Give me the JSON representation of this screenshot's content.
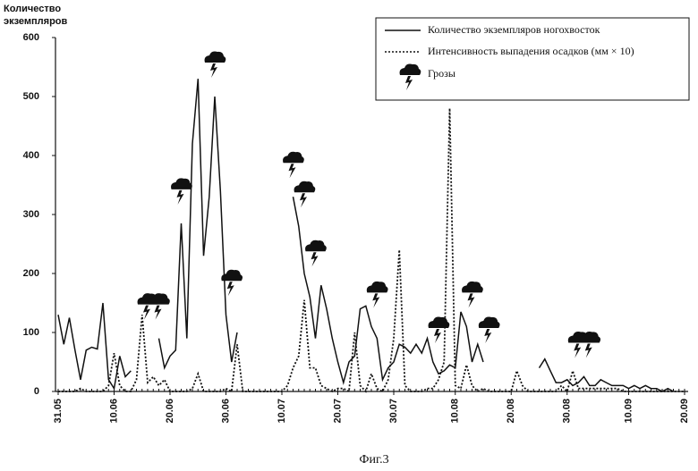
{
  "chart_data": {
    "type": "line",
    "ylabel": [
      "Количество",
      "экземпляров"
    ],
    "caption": "Фиг.3",
    "x": [
      0,
      1,
      2,
      3,
      4,
      5,
      6,
      7,
      8,
      9,
      10,
      11,
      12,
      13,
      14,
      15,
      16,
      17,
      18,
      19,
      20,
      21,
      22,
      23,
      24,
      25,
      26,
      27,
      28,
      29,
      30,
      31,
      32,
      33,
      34,
      35,
      36,
      37,
      38,
      39,
      40,
      41,
      42,
      43,
      44,
      45,
      46,
      47,
      48,
      49,
      50,
      51,
      52,
      53,
      54,
      55,
      56,
      57,
      58,
      59,
      60,
      61,
      62,
      63,
      64,
      65,
      66,
      67,
      68,
      69,
      70,
      71,
      72,
      73,
      74,
      75,
      76,
      77,
      78,
      79,
      80,
      81,
      82,
      83,
      84,
      85,
      86,
      87,
      88,
      89,
      90,
      91,
      92,
      93,
      94,
      95,
      96,
      97,
      98,
      99,
      100,
      101,
      102,
      103,
      104,
      105,
      106,
      107,
      108,
      109,
      110,
      111,
      112
    ],
    "series": [
      {
        "name": "Количество экземпляров ногохвосток",
        "color": "#111",
        "dash": "solid",
        "values": [
          130,
          80,
          125,
          70,
          20,
          70,
          75,
          72,
          150,
          20,
          5,
          60,
          25,
          35,
          null,
          null,
          null,
          null,
          90,
          40,
          60,
          70,
          285,
          90,
          420,
          530,
          230,
          330,
          500,
          340,
          130,
          50,
          100,
          null,
          null,
          null,
          null,
          null,
          null,
          null,
          null,
          null,
          330,
          280,
          200,
          160,
          90,
          180,
          140,
          90,
          50,
          15,
          50,
          60,
          140,
          145,
          110,
          90,
          20,
          40,
          50,
          80,
          75,
          65,
          80,
          65,
          90,
          50,
          30,
          35,
          45,
          40,
          135,
          110,
          50,
          80,
          50,
          null,
          null,
          null,
          null,
          null,
          null,
          null,
          null,
          null,
          40,
          55,
          35,
          15,
          15,
          20,
          10,
          15,
          25,
          10,
          10,
          20,
          15,
          10,
          10,
          10,
          5,
          10,
          5,
          10,
          5,
          5,
          0,
          5,
          0,
          null,
          null
        ]
      },
      {
        "name": "Интенсивность выпадения осадков (мм × 10)",
        "color": "#111",
        "dash": "dotted",
        "values": [
          0,
          0,
          0,
          0,
          5,
          0,
          0,
          0,
          0,
          10,
          65,
          10,
          0,
          0,
          20,
          130,
          15,
          25,
          10,
          20,
          0,
          0,
          0,
          0,
          5,
          30,
          0,
          0,
          0,
          0,
          5,
          0,
          80,
          0,
          0,
          0,
          0,
          0,
          0,
          0,
          0,
          10,
          40,
          60,
          155,
          40,
          40,
          10,
          5,
          0,
          5,
          5,
          0,
          100,
          10,
          0,
          30,
          5,
          0,
          20,
          90,
          240,
          10,
          0,
          0,
          0,
          5,
          5,
          20,
          50,
          480,
          10,
          5,
          45,
          10,
          0,
          5,
          0,
          0,
          0,
          0,
          0,
          35,
          10,
          0,
          0,
          0,
          0,
          0,
          0,
          10,
          0,
          35,
          5,
          5,
          5,
          5,
          5,
          5,
          5,
          5,
          0,
          0,
          0,
          0,
          0,
          0,
          0,
          0,
          0,
          0,
          0,
          0
        ]
      }
    ],
    "events": {
      "name": "Грозы",
      "color": "#111",
      "x": [
        16,
        18,
        22,
        28,
        31,
        42,
        44,
        46,
        57,
        68,
        74,
        77,
        93,
        95
      ]
    },
    "xlim": [
      0,
      112
    ],
    "xticks": [
      {
        "value": 0,
        "label": "31.05"
      },
      {
        "value": 10,
        "label": "10.06"
      },
      {
        "value": 20,
        "label": "20.06"
      },
      {
        "value": 30,
        "label": "30.06"
      },
      {
        "value": 40,
        "label": "10.07"
      },
      {
        "value": 50,
        "label": "20.07"
      },
      {
        "value": 60,
        "label": "30.07"
      },
      {
        "value": 71,
        "label": "10.08"
      },
      {
        "value": 81,
        "label": "20.08"
      },
      {
        "value": 91,
        "label": "30.08"
      },
      {
        "value": 102,
        "label": "10.09"
      },
      {
        "value": 112,
        "label": "20.09"
      }
    ],
    "ylim": [
      0,
      600
    ],
    "yticks": [
      0,
      100,
      200,
      300,
      400,
      500,
      600
    ]
  }
}
